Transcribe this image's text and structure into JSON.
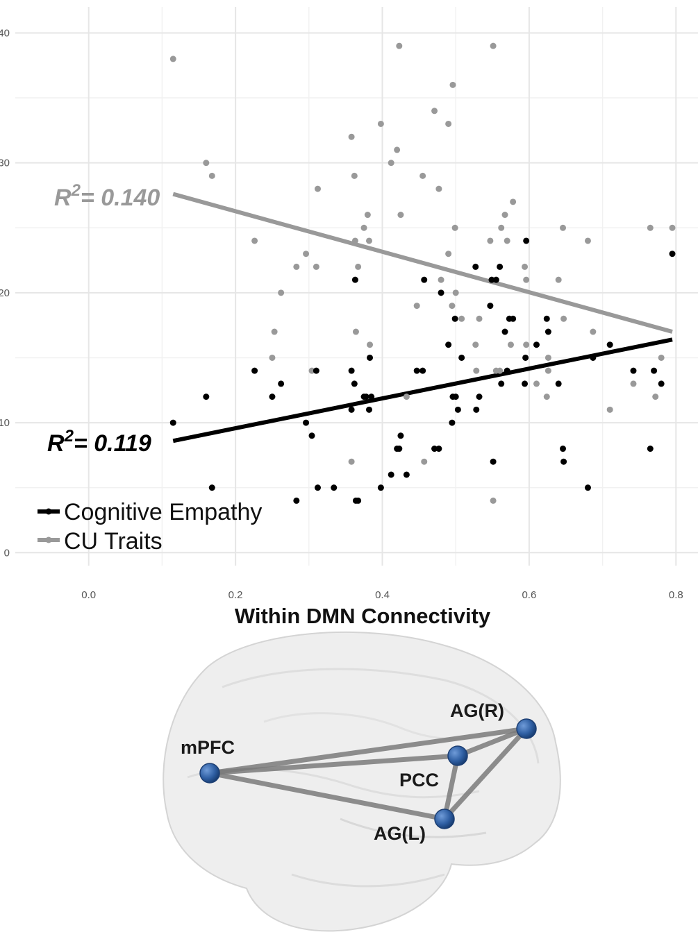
{
  "chart_data": {
    "type": "scatter",
    "xlabel": "Within DMN Connectivity",
    "ylabel": "",
    "xlim": [
      -0.1,
      0.83
    ],
    "ylim": [
      -1,
      42
    ],
    "x_ticks": [
      0.0,
      0.2,
      0.4,
      0.6,
      0.8
    ],
    "y_ticks": [
      0,
      10,
      20,
      30,
      40
    ],
    "x_tick_labels": [
      "0.0",
      "0.2",
      "0.4",
      "0.6",
      "0.8"
    ],
    "y_tick_labels": [
      "0",
      "10",
      "20",
      "30",
      "40"
    ],
    "grid": true,
    "legend_position": "bottom-left",
    "series": [
      {
        "name": "Cognitive Empathy",
        "color": "#000000",
        "annotation_prefix": "R",
        "annotation_exp": "2",
        "annotation_value": "= 0.119",
        "fit": {
          "x": [
            0.115,
            0.795
          ],
          "y": [
            8.6,
            16.4
          ]
        },
        "points": [
          [
            0.115,
            10
          ],
          [
            0.16,
            12
          ],
          [
            0.168,
            5
          ],
          [
            0.226,
            14
          ],
          [
            0.25,
            12
          ],
          [
            0.262,
            13
          ],
          [
            0.283,
            4
          ],
          [
            0.296,
            10
          ],
          [
            0.304,
            9
          ],
          [
            0.31,
            14
          ],
          [
            0.312,
            5
          ],
          [
            0.334,
            5
          ],
          [
            0.358,
            14
          ],
          [
            0.358,
            11
          ],
          [
            0.362,
            13
          ],
          [
            0.363,
            21
          ],
          [
            0.364,
            4
          ],
          [
            0.367,
            4
          ],
          [
            0.375,
            12
          ],
          [
            0.378,
            12
          ],
          [
            0.382,
            11
          ],
          [
            0.383,
            15
          ],
          [
            0.385,
            12
          ],
          [
            0.398,
            5
          ],
          [
            0.412,
            6
          ],
          [
            0.42,
            8
          ],
          [
            0.423,
            8
          ],
          [
            0.425,
            9
          ],
          [
            0.433,
            6
          ],
          [
            0.447,
            14
          ],
          [
            0.455,
            14
          ],
          [
            0.457,
            21
          ],
          [
            0.471,
            8
          ],
          [
            0.477,
            8
          ],
          [
            0.48,
            20
          ],
          [
            0.49,
            16
          ],
          [
            0.495,
            10
          ],
          [
            0.496,
            12
          ],
          [
            0.499,
            18
          ],
          [
            0.5,
            12
          ],
          [
            0.503,
            11
          ],
          [
            0.508,
            15
          ],
          [
            0.527,
            22
          ],
          [
            0.528,
            11
          ],
          [
            0.532,
            12
          ],
          [
            0.547,
            19
          ],
          [
            0.549,
            21
          ],
          [
            0.551,
            7
          ],
          [
            0.555,
            21
          ],
          [
            0.56,
            22
          ],
          [
            0.562,
            13
          ],
          [
            0.567,
            17
          ],
          [
            0.57,
            14
          ],
          [
            0.573,
            18
          ],
          [
            0.578,
            18
          ],
          [
            0.594,
            13
          ],
          [
            0.595,
            15
          ],
          [
            0.596,
            24
          ],
          [
            0.61,
            16
          ],
          [
            0.624,
            18
          ],
          [
            0.626,
            17
          ],
          [
            0.64,
            13
          ],
          [
            0.646,
            8
          ],
          [
            0.647,
            7
          ],
          [
            0.68,
            5
          ],
          [
            0.687,
            15
          ],
          [
            0.71,
            16
          ],
          [
            0.742,
            14
          ],
          [
            0.765,
            8
          ],
          [
            0.77,
            14
          ],
          [
            0.78,
            13
          ],
          [
            0.795,
            23
          ]
        ]
      },
      {
        "name": "CU Traits",
        "color": "#999999",
        "annotation_prefix": "R",
        "annotation_exp": "2",
        "annotation_value": "= 0.140",
        "fit": {
          "x": [
            0.115,
            0.795
          ],
          "y": [
            27.6,
            17.0
          ]
        },
        "points": [
          [
            0.115,
            38
          ],
          [
            0.16,
            30
          ],
          [
            0.168,
            29
          ],
          [
            0.226,
            24
          ],
          [
            0.25,
            15
          ],
          [
            0.253,
            17
          ],
          [
            0.262,
            20
          ],
          [
            0.283,
            22
          ],
          [
            0.296,
            23
          ],
          [
            0.304,
            14
          ],
          [
            0.31,
            22
          ],
          [
            0.312,
            28
          ],
          [
            0.358,
            32
          ],
          [
            0.358,
            7
          ],
          [
            0.362,
            29
          ],
          [
            0.363,
            24
          ],
          [
            0.364,
            17
          ],
          [
            0.367,
            22
          ],
          [
            0.375,
            25
          ],
          [
            0.38,
            26
          ],
          [
            0.382,
            24
          ],
          [
            0.383,
            16
          ],
          [
            0.398,
            33
          ],
          [
            0.412,
            30
          ],
          [
            0.42,
            31
          ],
          [
            0.423,
            39
          ],
          [
            0.425,
            26
          ],
          [
            0.433,
            12
          ],
          [
            0.447,
            19
          ],
          [
            0.455,
            29
          ],
          [
            0.457,
            7
          ],
          [
            0.471,
            34
          ],
          [
            0.477,
            28
          ],
          [
            0.48,
            21
          ],
          [
            0.49,
            33
          ],
          [
            0.49,
            23
          ],
          [
            0.495,
            19
          ],
          [
            0.496,
            36
          ],
          [
            0.499,
            25
          ],
          [
            0.5,
            20
          ],
          [
            0.508,
            18
          ],
          [
            0.527,
            16
          ],
          [
            0.528,
            14
          ],
          [
            0.532,
            18
          ],
          [
            0.547,
            24
          ],
          [
            0.551,
            39
          ],
          [
            0.551,
            4
          ],
          [
            0.555,
            14
          ],
          [
            0.56,
            14
          ],
          [
            0.562,
            25
          ],
          [
            0.567,
            26
          ],
          [
            0.57,
            24
          ],
          [
            0.575,
            16
          ],
          [
            0.578,
            27
          ],
          [
            0.594,
            22
          ],
          [
            0.596,
            21
          ],
          [
            0.596,
            16
          ],
          [
            0.61,
            13
          ],
          [
            0.624,
            12
          ],
          [
            0.626,
            14
          ],
          [
            0.626,
            15
          ],
          [
            0.64,
            21
          ],
          [
            0.646,
            25
          ],
          [
            0.647,
            18
          ],
          [
            0.68,
            24
          ],
          [
            0.687,
            17
          ],
          [
            0.71,
            11
          ],
          [
            0.742,
            13
          ],
          [
            0.765,
            25
          ],
          [
            0.772,
            12
          ],
          [
            0.78,
            15
          ],
          [
            0.795,
            25
          ]
        ]
      }
    ]
  },
  "brain_network": {
    "nodes": [
      {
        "id": "mPFC",
        "label": "mPFC"
      },
      {
        "id": "PCC",
        "label": "PCC"
      },
      {
        "id": "AGR",
        "label": "AG(R)"
      },
      {
        "id": "AGL",
        "label": "AG(L)"
      }
    ],
    "edges": [
      [
        "mPFC",
        "AGR"
      ],
      [
        "mPFC",
        "PCC"
      ],
      [
        "mPFC",
        "AGL"
      ],
      [
        "PCC",
        "AGR"
      ],
      [
        "PCC",
        "AGL"
      ],
      [
        "AGR",
        "AGL"
      ]
    ],
    "node_color": "#2f5fa3",
    "edge_color": "#7a7a7a"
  }
}
